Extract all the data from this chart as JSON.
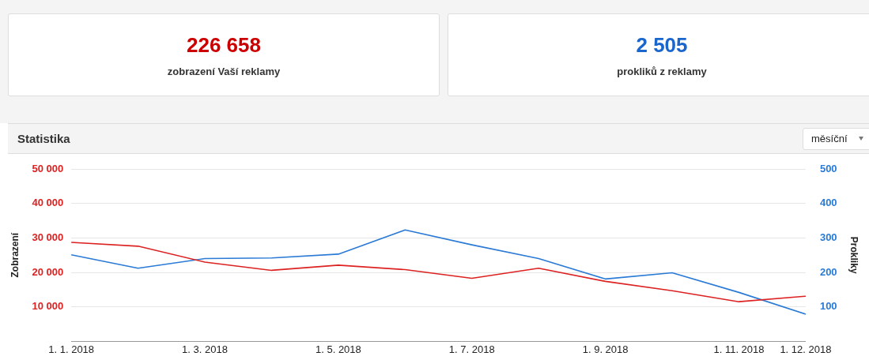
{
  "chart_data": [
    {
      "type": "other",
      "title": "226 658",
      "subtitle": "zobrazení Vaší reklamy",
      "color": "#cc0000"
    },
    {
      "type": "other",
      "title": "2 505",
      "subtitle": "prokliků z reklamy",
      "color": "#1a66cc"
    },
    {
      "type": "line",
      "title": "Statistika",
      "annotations": [
        "měsíční"
      ],
      "ylabel": "Zobrazení",
      "y2label": "Prokliky",
      "categories": [
        "1. 1. 2018",
        null,
        "1. 3. 2018",
        null,
        "1. 5. 2018",
        null,
        "1. 7. 2018",
        null,
        "1. 9. 2018",
        null,
        "1. 11. 2018",
        "1. 12. 2018"
      ],
      "series": [
        {
          "color": "#dd2222",
          "axis": "y",
          "values": [
            28700,
            27600,
            23000,
            20600,
            22100,
            20800,
            18300,
            21200,
            17400,
            14700,
            11500,
            13100
          ]
        },
        {
          "color": "#2a7ad6",
          "axis": "y2",
          "values": [
            251,
            212,
            240,
            242,
            253,
            323,
            280,
            240,
            181,
            199,
            142,
            79
          ]
        }
      ],
      "ylim": [
        0,
        50000
      ],
      "yticks": [
        {
          "value": 10000,
          "label": "10 000"
        },
        {
          "value": 20000,
          "label": "20 000"
        },
        {
          "value": 30000,
          "label": "30 000"
        },
        {
          "value": 40000,
          "label": "40 000"
        },
        {
          "value": 50000,
          "label": "50 000"
        }
      ],
      "y2lim": [
        0,
        500
      ],
      "y2ticks": [
        100,
        200,
        300,
        400,
        500
      ],
      "grid": "y",
      "legend": false,
      "marker": "none",
      "line_style": "solid"
    }
  ]
}
